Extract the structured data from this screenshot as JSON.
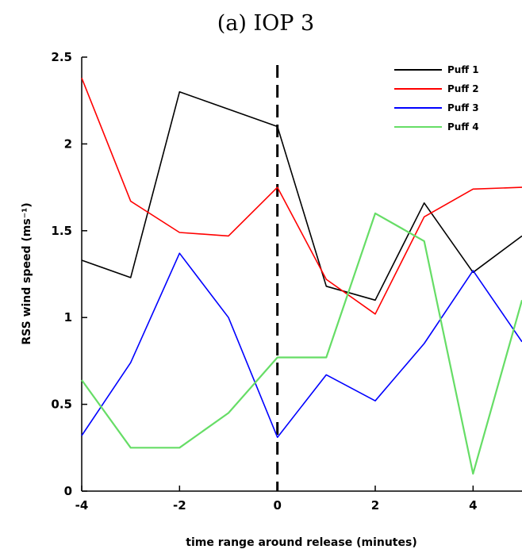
{
  "chart_data": {
    "type": "line",
    "title": "(a) IOP 3",
    "xlabel": "time range around release (minutes)",
    "ylabel": "RSS wind speed (ms⁻¹)",
    "xlim": [
      -4,
      5
    ],
    "ylim": [
      0,
      2.5
    ],
    "xticks": [
      -4,
      -2,
      0,
      2,
      4
    ],
    "xtick_labels": [
      "-4",
      "-2",
      "0",
      "2",
      "4"
    ],
    "yticks": [
      0,
      0.5,
      1,
      1.5,
      2,
      2.5
    ],
    "ytick_labels": [
      "0",
      "0.5",
      "1",
      "1.5",
      "2",
      "2.5"
    ],
    "grid": false,
    "legend_position": "top-right",
    "reference_line": {
      "x": 0,
      "style": "dashed",
      "color": "#000000"
    },
    "x": [
      -4,
      -3,
      -2,
      -1,
      0,
      1,
      2,
      3,
      4,
      5
    ],
    "series": [
      {
        "name": "Puff 1",
        "color": "#000000",
        "values": [
          1.33,
          1.23,
          2.3,
          2.2,
          2.1,
          1.18,
          1.1,
          1.66,
          1.26,
          1.47
        ]
      },
      {
        "name": "Puff 2",
        "color": "#ff0000",
        "values": [
          2.38,
          1.67,
          1.49,
          1.47,
          1.75,
          1.22,
          1.02,
          1.58,
          1.74,
          1.75
        ]
      },
      {
        "name": "Puff 3",
        "color": "#0000ff",
        "values": [
          0.32,
          0.74,
          1.37,
          1.0,
          0.31,
          0.67,
          0.52,
          0.85,
          1.27,
          0.86
        ]
      },
      {
        "name": "Puff 4",
        "color": "#66dd66",
        "values": [
          0.64,
          0.25,
          0.25,
          0.45,
          0.77,
          0.77,
          1.6,
          1.44,
          0.1,
          1.1
        ]
      }
    ]
  }
}
